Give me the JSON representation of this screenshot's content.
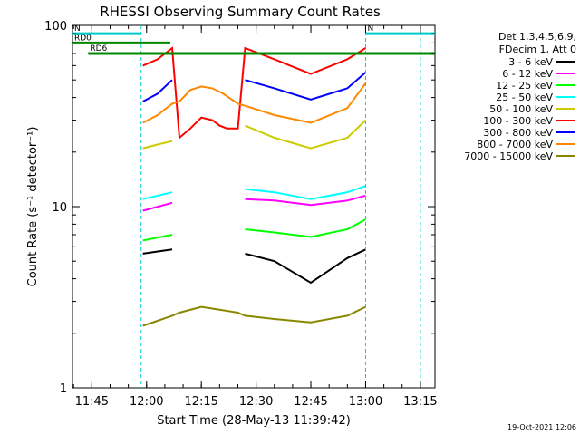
{
  "chart_data": {
    "type": "line",
    "title": "RHESSI Observing Summary Count Rates",
    "xlabel": "Start Time (28-May-13 11:39:42)",
    "ylabel": "Count Rate (s⁻¹ detector⁻¹)",
    "yscale": "log",
    "ylim": [
      1,
      100
    ],
    "y_tick_labels": [
      "1",
      "10",
      "100"
    ],
    "x_range_minutes": [
      "11:39:42",
      "13:19:00"
    ],
    "x_tick_labels": [
      "11:45",
      "12:00",
      "12:15",
      "12:30",
      "12:45",
      "13:00",
      "13:15"
    ],
    "x_ticks": [
      "11:45",
      "12:00",
      "12:15",
      "12:30",
      "12:45",
      "13:00",
      "13:15"
    ],
    "grid": false,
    "legend_position": "right",
    "legend_header": [
      "Det 1,3,4,5,6,9,",
      "FDecim 1, Att 0"
    ],
    "footer_timestamp": "19-Oct-2021 12:06",
    "series": [
      {
        "name": "3 - 6 keV",
        "color": "#000000",
        "x": [
          "11:59",
          "12:07",
          "12:09",
          "12:15",
          "12:20",
          "12:25",
          "12:27",
          "12:35",
          "12:45",
          "12:55",
          "13:00"
        ],
        "y": [
          5.5,
          5.8,
          null,
          null,
          null,
          null,
          5.5,
          5.0,
          3.8,
          5.2,
          5.8
        ]
      },
      {
        "name": "6 - 12 keV",
        "color": "#ff00ff",
        "x": [
          "11:59",
          "12:07",
          "12:09",
          "12:15",
          "12:20",
          "12:25",
          "12:27",
          "12:35",
          "12:45",
          "12:55",
          "13:00"
        ],
        "y": [
          9.5,
          10.5,
          null,
          null,
          null,
          null,
          11.0,
          10.8,
          10.2,
          10.8,
          11.5
        ]
      },
      {
        "name": "12 - 25 keV",
        "color": "#00ff00",
        "x": [
          "11:59",
          "12:07",
          "12:09",
          "12:15",
          "12:20",
          "12:25",
          "12:27",
          "12:35",
          "12:45",
          "12:55",
          "13:00"
        ],
        "y": [
          6.5,
          7.0,
          null,
          null,
          null,
          null,
          7.5,
          7.2,
          6.8,
          7.5,
          8.5
        ]
      },
      {
        "name": "25 - 50 keV",
        "color": "#00ffff",
        "x": [
          "11:59",
          "12:07",
          "12:09",
          "12:15",
          "12:20",
          "12:25",
          "12:27",
          "12:35",
          "12:45",
          "12:55",
          "13:00"
        ],
        "y": [
          11.0,
          12.0,
          null,
          null,
          null,
          null,
          12.5,
          12.0,
          11.0,
          12.0,
          13.0
        ]
      },
      {
        "name": "50 - 100 keV",
        "color": "#cccc00",
        "x": [
          "11:59",
          "12:03",
          "12:07",
          "12:09",
          "12:15",
          "12:20",
          "12:25",
          "12:27",
          "12:35",
          "12:45",
          "12:55",
          "13:00"
        ],
        "y": [
          21,
          22,
          23,
          null,
          null,
          null,
          null,
          28,
          24,
          21,
          24,
          30
        ]
      },
      {
        "name": "100 - 300 keV",
        "color": "#ff0000",
        "x": [
          "11:59",
          "12:03",
          "12:07",
          "12:09",
          "12:12",
          "12:15",
          "12:18",
          "12:20",
          "12:22",
          "12:25",
          "12:27",
          "12:35",
          "12:45",
          "12:55",
          "13:00"
        ],
        "y": [
          60,
          65,
          75,
          24,
          27,
          31,
          30,
          28,
          27,
          27,
          75,
          65,
          54,
          65,
          75
        ]
      },
      {
        "name": "300 - 800 keV",
        "color": "#0000ff",
        "x": [
          "11:59",
          "12:03",
          "12:07",
          "12:09",
          "12:25",
          "12:27",
          "12:35",
          "12:45",
          "12:55",
          "13:00"
        ],
        "y": [
          38,
          42,
          50,
          null,
          null,
          50,
          45,
          39,
          45,
          55
        ]
      },
      {
        "name": "800 - 7000 keV",
        "color": "#ff8800",
        "x": [
          "11:59",
          "12:03",
          "12:07",
          "12:09",
          "12:12",
          "12:15",
          "12:18",
          "12:21",
          "12:25",
          "12:27",
          "12:35",
          "12:45",
          "12:55",
          "13:00"
        ],
        "y": [
          29,
          32,
          37,
          38,
          44,
          46,
          45,
          42,
          37,
          36,
          32,
          29,
          35,
          48
        ]
      },
      {
        "name": "7000 - 15000 keV",
        "color": "#888800",
        "x": [
          "11:59",
          "12:07",
          "12:09",
          "12:15",
          "12:20",
          "12:25",
          "12:27",
          "12:35",
          "12:45",
          "12:55",
          "13:00"
        ],
        "y": [
          2.2,
          2.5,
          2.6,
          2.8,
          2.7,
          2.6,
          2.5,
          2.4,
          2.3,
          2.5,
          2.8
        ]
      }
    ],
    "annotations": {
      "attenuator_markers": [
        {
          "label": "RD0",
          "color": "#008800",
          "y": 80,
          "x_start": "11:39:42",
          "x_end": "12:06:30"
        },
        {
          "label": "RD6",
          "color": "#008800",
          "y": 70,
          "x_start": "11:44:00",
          "x_end": "13:19:00"
        },
        {
          "label": "N",
          "color": "#00cccc",
          "y": 90,
          "x_start": "11:39:42",
          "x_end": "11:58:30"
        },
        {
          "label": "N",
          "color": "#00cccc",
          "y": 90,
          "x_start": "13:00:00",
          "x_end": "13:19:00"
        }
      ],
      "night_boundaries": [
        "11:58:30",
        "13:00:00",
        "13:15:00"
      ]
    }
  }
}
